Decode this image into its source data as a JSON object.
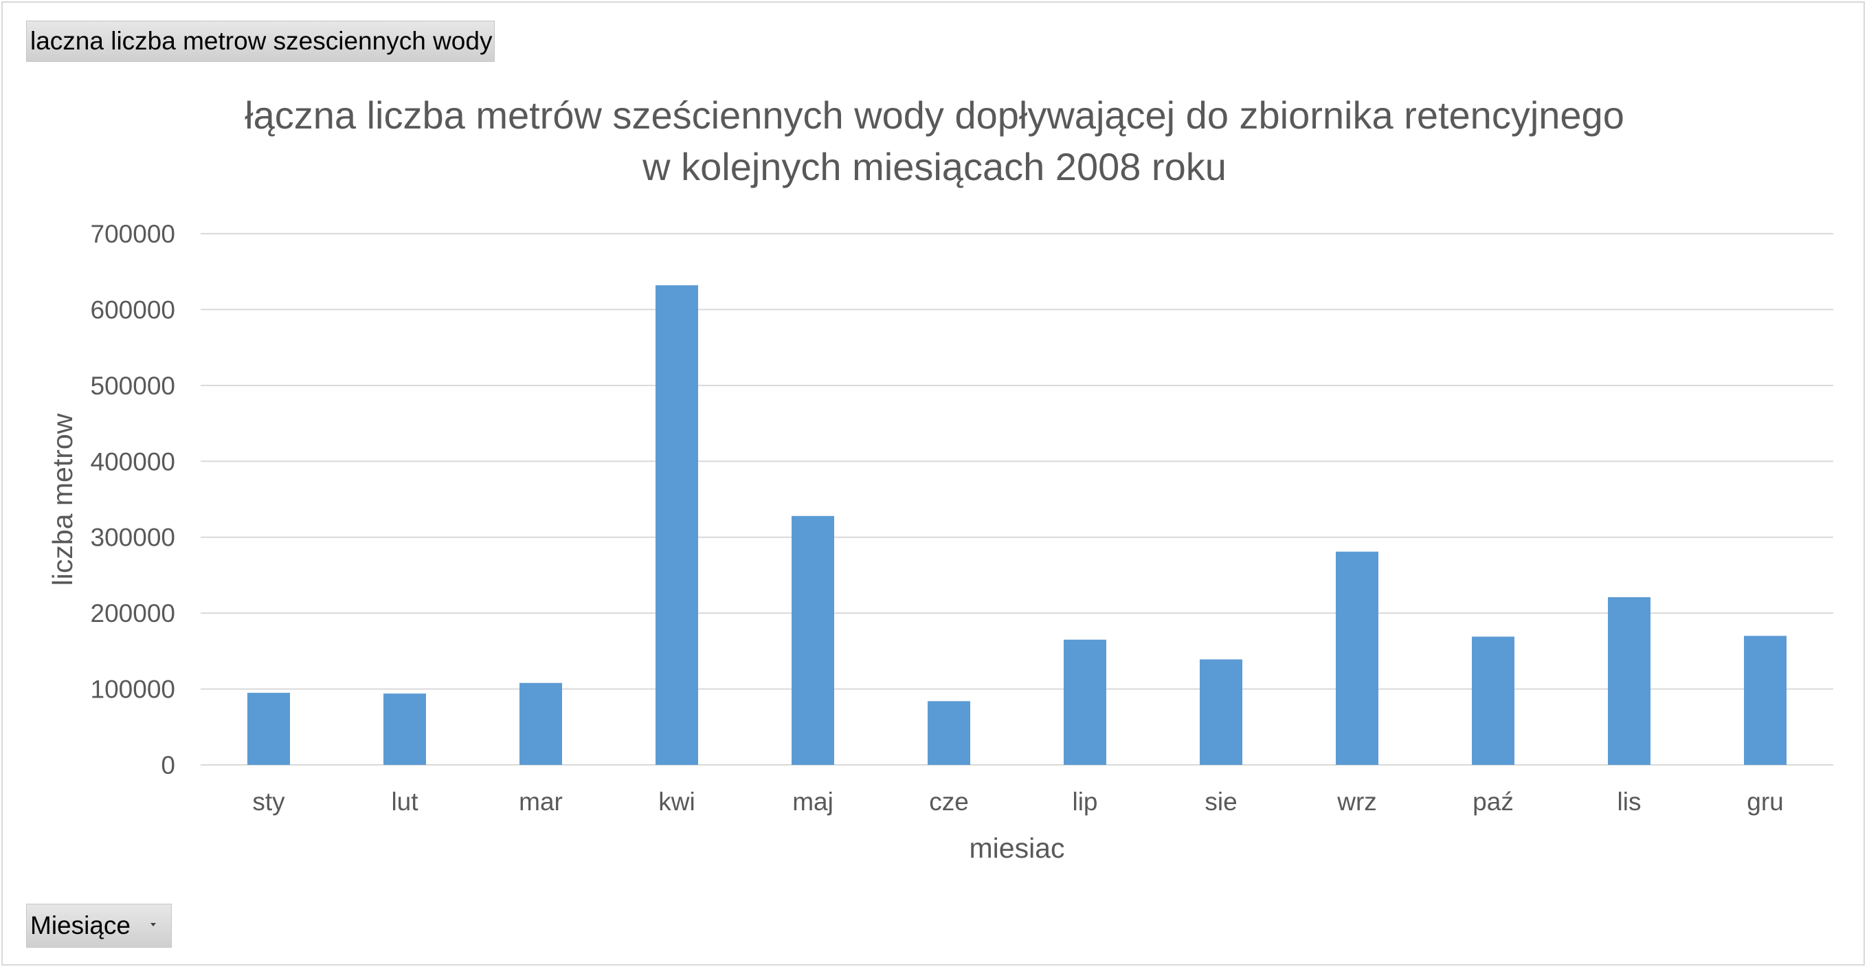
{
  "pivot": {
    "values_field_label": "laczna liczba metrow szesciennych wody",
    "axis_field_label": "Miesiące"
  },
  "colors": {
    "bar": "#5b9bd5",
    "gridline": "#d9d9d9",
    "text": "#595959",
    "field_button": "#d9d9d9"
  },
  "chart_data": {
    "type": "bar",
    "title_lines": [
      "łączna liczba metrów sześciennych wody dopływającej do zbiornika retencyjnego",
      "w kolejnych miesiącach 2008 roku"
    ],
    "xlabel": "miesiac",
    "ylabel": "liczba metrow",
    "ylim": [
      0,
      700000
    ],
    "yticks": [
      0,
      100000,
      200000,
      300000,
      400000,
      500000,
      600000,
      700000
    ],
    "categories": [
      "sty",
      "lut",
      "mar",
      "kwi",
      "maj",
      "cze",
      "lip",
      "sie",
      "wrz",
      "paź",
      "lis",
      "gru"
    ],
    "values": [
      95000,
      94000,
      108000,
      632000,
      328000,
      84000,
      165000,
      139000,
      281000,
      169000,
      221000,
      170000
    ],
    "grid": true,
    "legend": "none"
  }
}
